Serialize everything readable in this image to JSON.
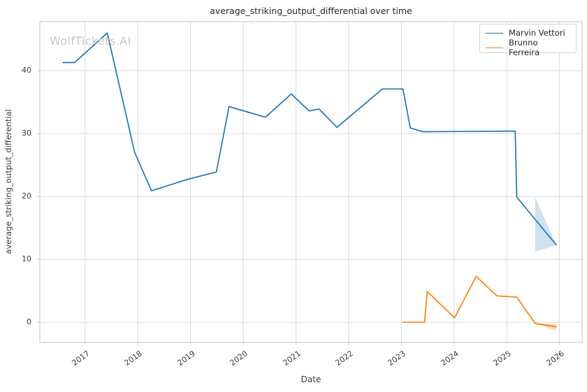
{
  "watermark": "WolfTickets.AI",
  "chart_data": {
    "type": "line",
    "title": "average_striking_output_differential over time",
    "xlabel": "Date",
    "ylabel": "average_striking_output_differential",
    "xlim": [
      2016.14,
      2026.43
    ],
    "ylim": [
      -3.2,
      47.8
    ],
    "x_ticks": [
      2017,
      2018,
      2019,
      2020,
      2021,
      2022,
      2023,
      2024,
      2025,
      2026
    ],
    "y_ticks": [
      0,
      10,
      20,
      30,
      40
    ],
    "grid": true,
    "legend_position": "upper right",
    "series": [
      {
        "name": "Marvin Vettori",
        "color": "#1f77b4",
        "points": [
          [
            2016.58,
            41.3
          ],
          [
            2016.8,
            41.3
          ],
          [
            2017.42,
            46.0
          ],
          [
            2017.94,
            27.0
          ],
          [
            2018.26,
            20.9
          ],
          [
            2018.93,
            22.7
          ],
          [
            2019.49,
            23.9
          ],
          [
            2019.73,
            34.3
          ],
          [
            2020.42,
            32.6
          ],
          [
            2020.91,
            36.3
          ],
          [
            2021.25,
            33.6
          ],
          [
            2021.44,
            33.9
          ],
          [
            2021.78,
            31.0
          ],
          [
            2022.64,
            37.1
          ],
          [
            2023.03,
            37.1
          ],
          [
            2023.17,
            30.9
          ],
          [
            2023.41,
            30.3
          ],
          [
            2025.16,
            30.4
          ],
          [
            2025.19,
            19.9
          ],
          [
            2025.94,
            12.3
          ]
        ]
      },
      {
        "name": "Brunno Ferreira",
        "color": "#ff7f0e",
        "points": [
          [
            2023.03,
            0.0
          ],
          [
            2023.44,
            0.0
          ],
          [
            2023.49,
            4.9
          ],
          [
            2024.01,
            0.7
          ],
          [
            2024.42,
            7.3
          ],
          [
            2024.81,
            4.2
          ],
          [
            2025.19,
            4.0
          ],
          [
            2025.54,
            -0.2
          ],
          [
            2025.94,
            -0.7
          ]
        ]
      }
    ],
    "uncertainty_bands": [
      {
        "series": "Marvin Vettori",
        "color": "#1f77b4",
        "opacity": 0.22,
        "polygon": [
          [
            2025.54,
            19.9
          ],
          [
            2025.94,
            12.3
          ],
          [
            2025.54,
            11.2
          ]
        ]
      },
      {
        "series": "Brunno Ferreira",
        "color": "#ff7f0e",
        "opacity": 0.3,
        "polygon": [
          [
            2025.54,
            -0.2
          ],
          [
            2025.94,
            -0.3
          ],
          [
            2025.94,
            -1.3
          ]
        ]
      }
    ],
    "style": {
      "grid_color": "#d9d9d9",
      "spine_color": "#cccccc",
      "tick_color": "#bfbfbf",
      "background": "#ffffff"
    }
  }
}
